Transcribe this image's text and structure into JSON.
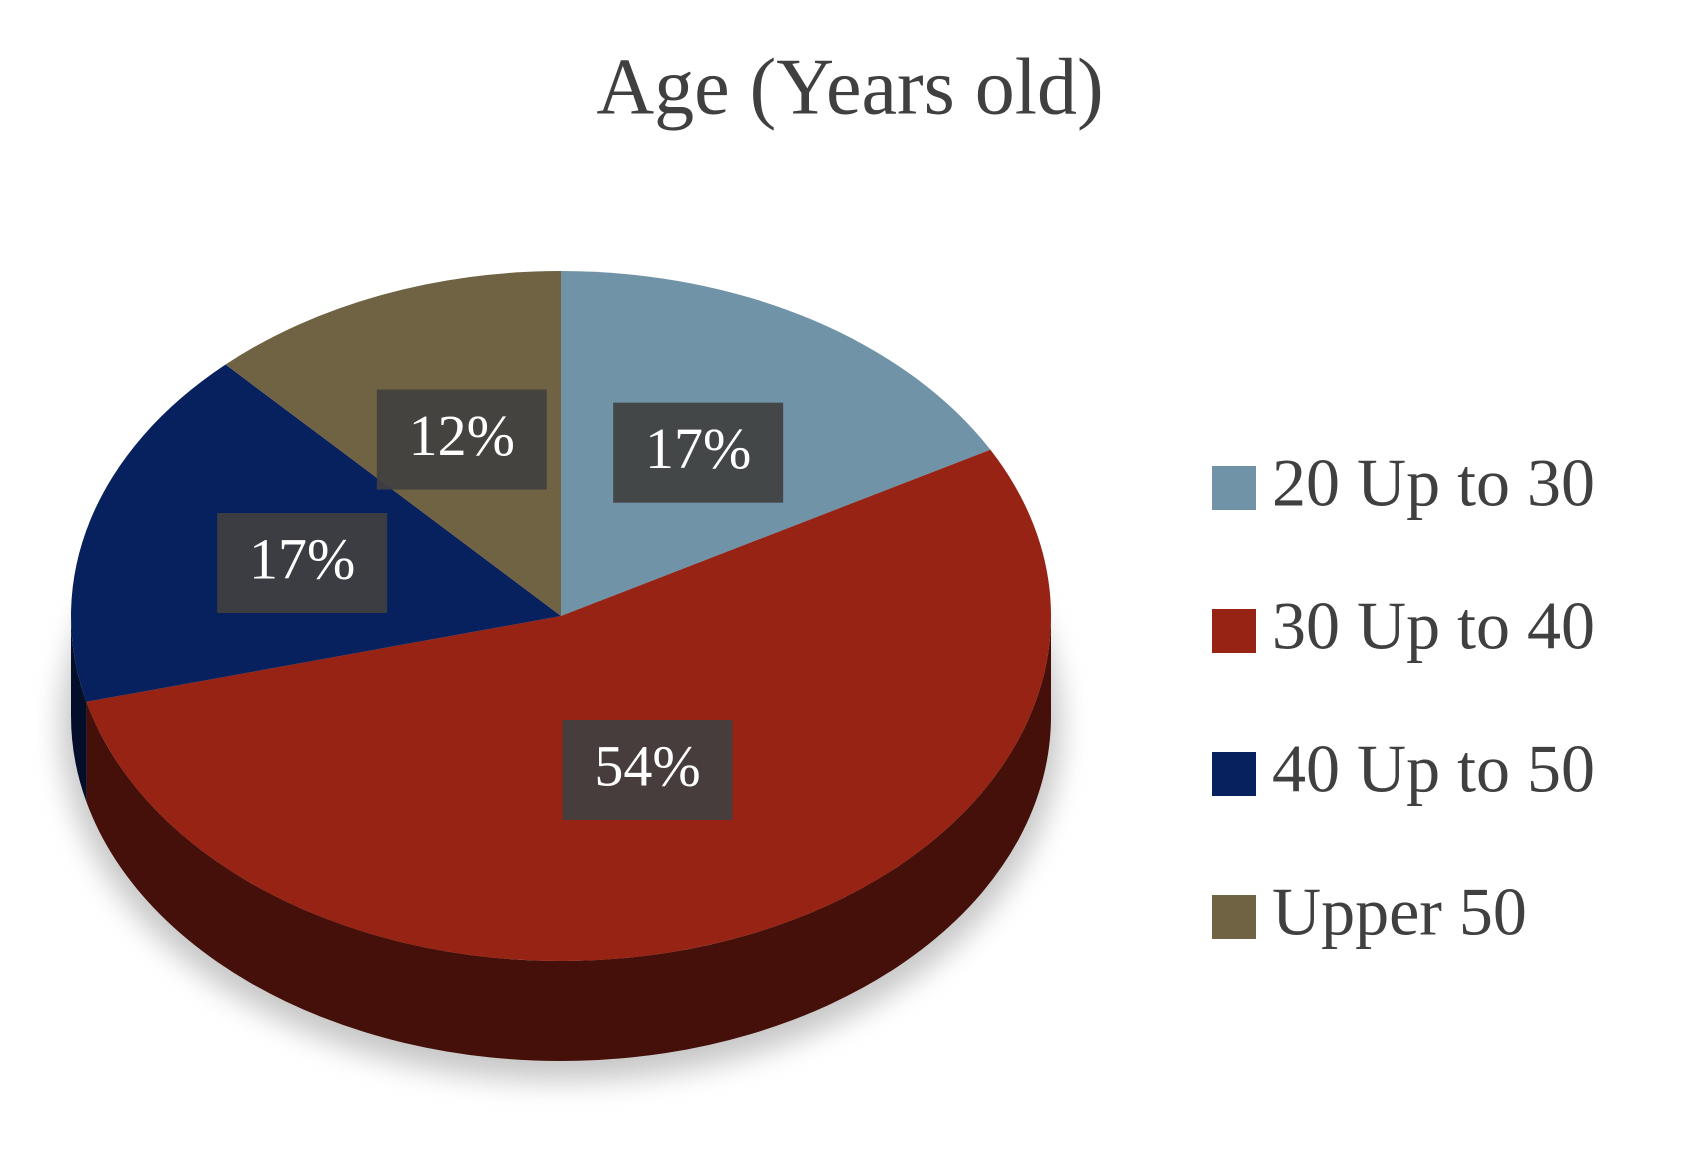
{
  "chart_data": {
    "type": "pie",
    "title": "Age (Years old)",
    "categories": [
      "20 Up to 30",
      "30 Up to 40",
      "40 Up to 50",
      "Upper 50"
    ],
    "values": [
      17,
      54,
      17,
      12
    ],
    "value_labels": [
      "17%",
      "54%",
      "17%",
      "12%"
    ],
    "colors": [
      "#7093a8",
      "#962314",
      "#06215e",
      "#6f6344"
    ],
    "legend": "right"
  }
}
